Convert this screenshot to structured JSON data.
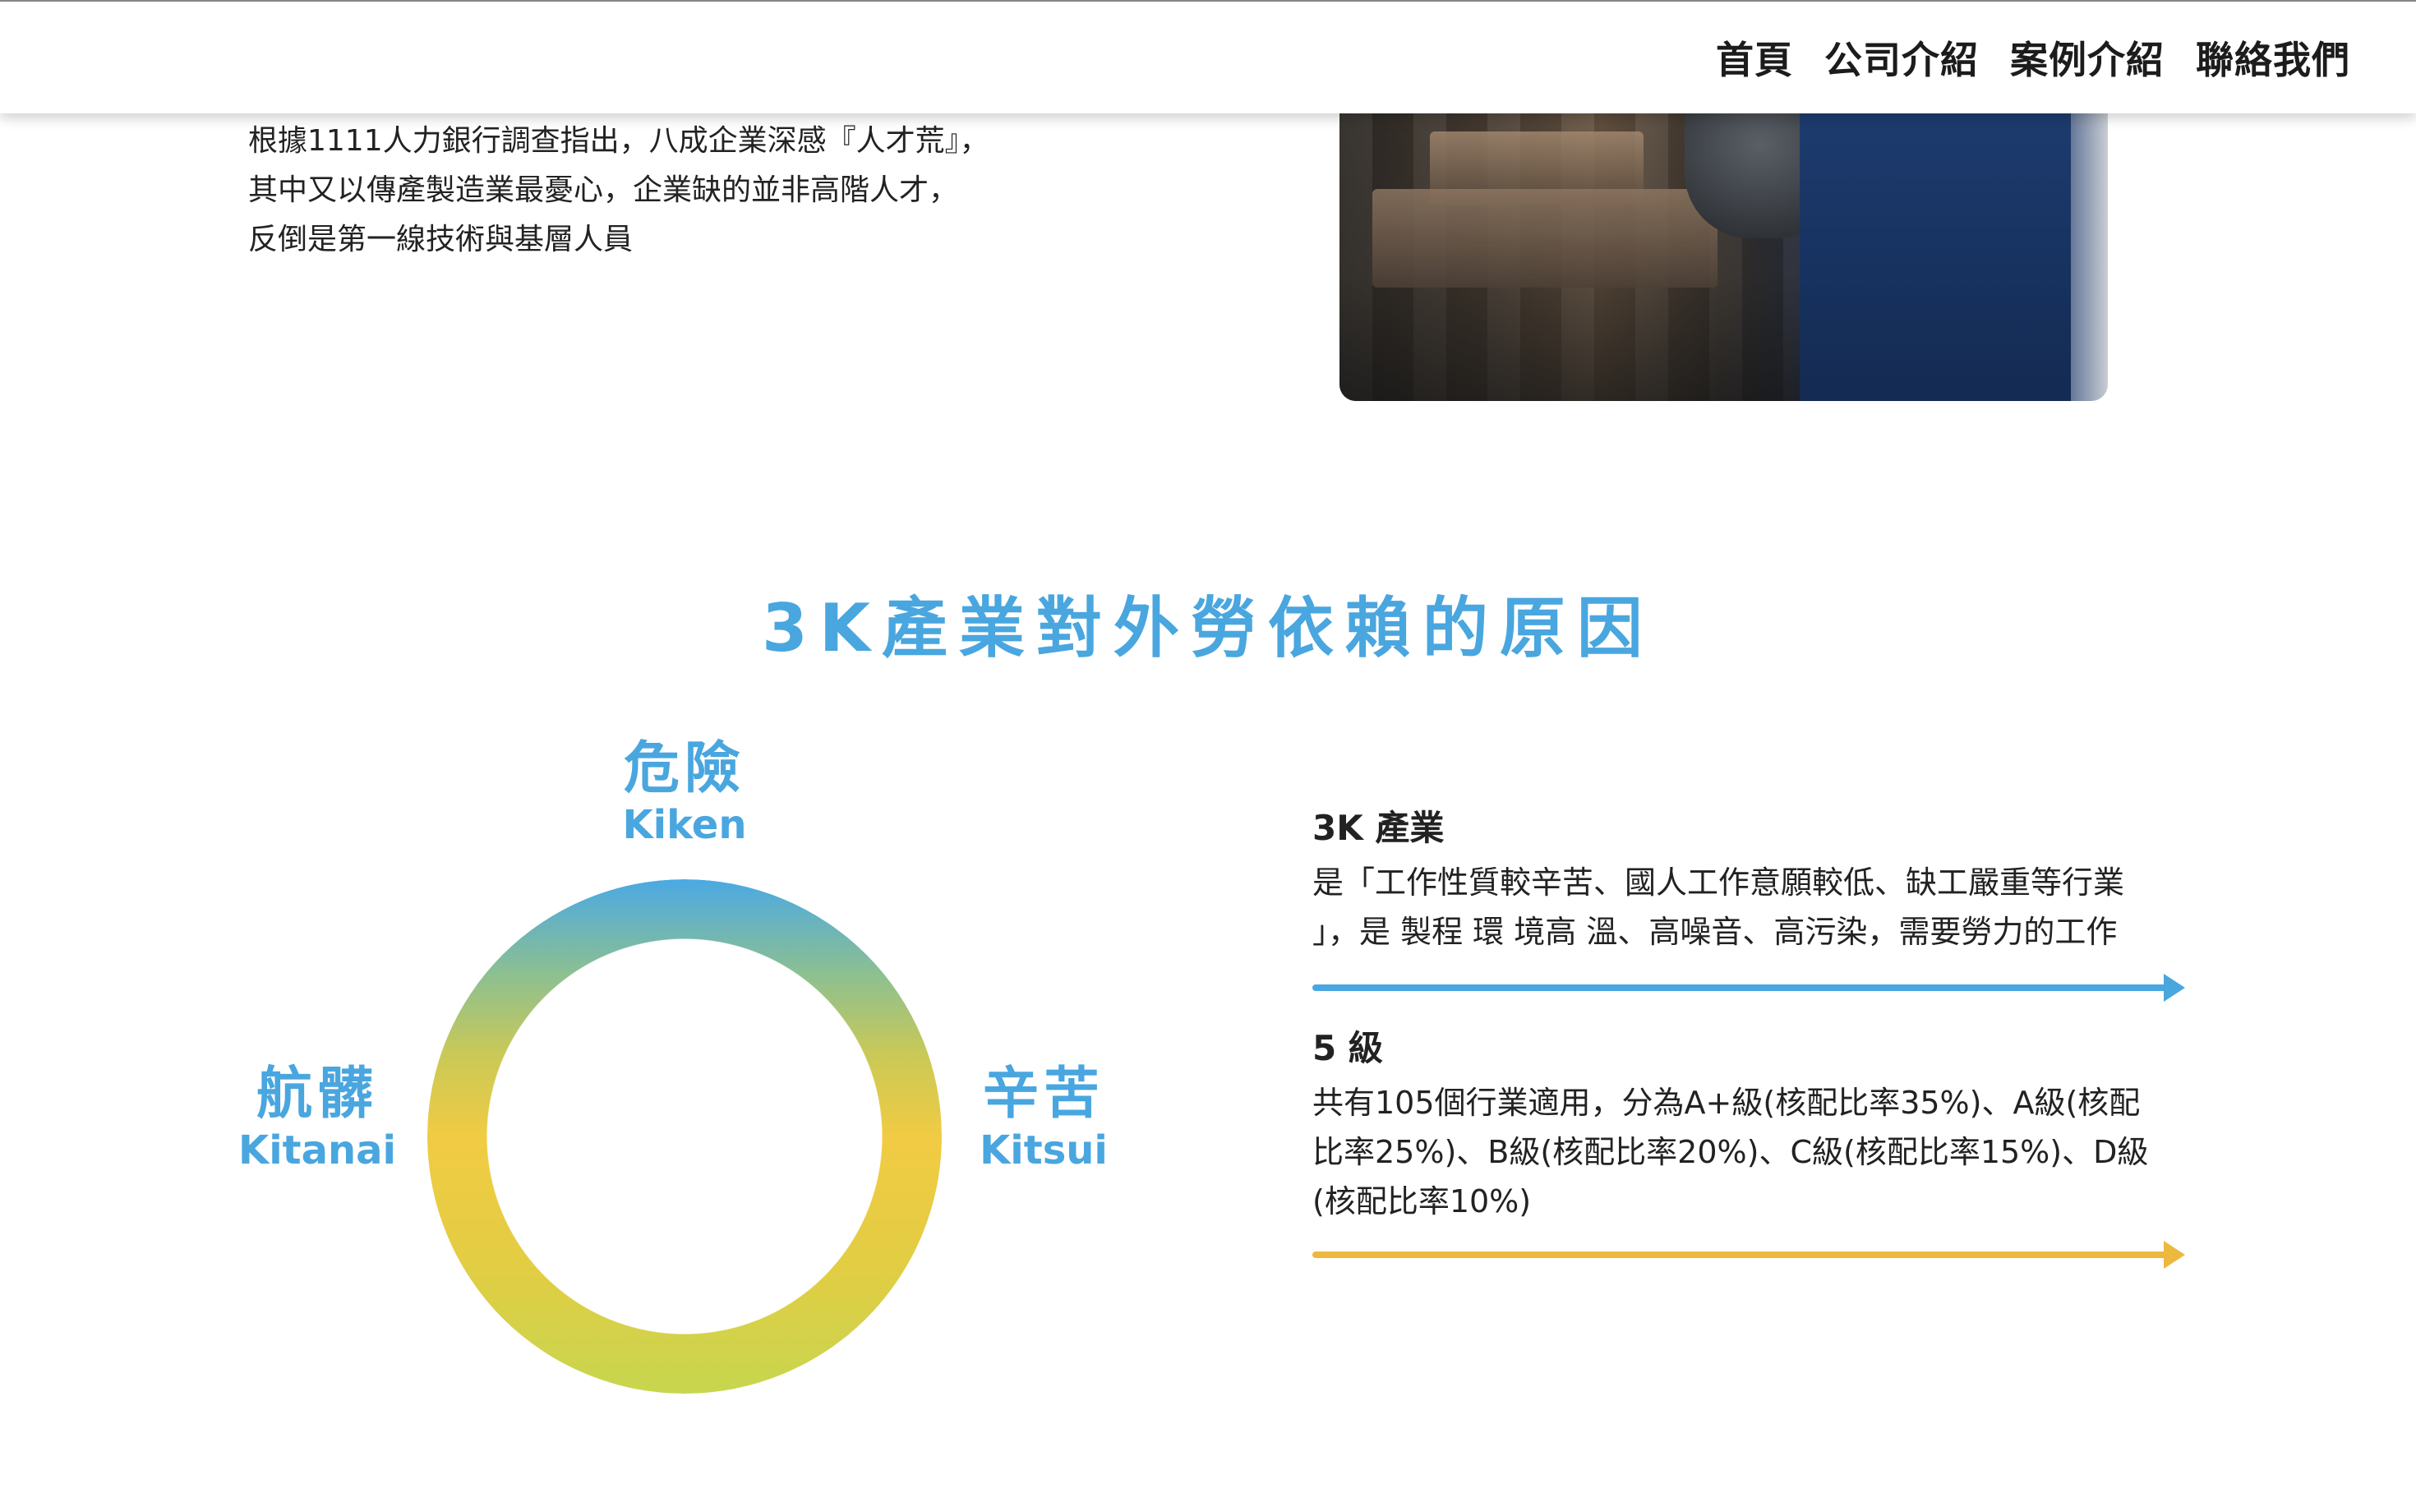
{
  "nav": {
    "items": [
      "首頁",
      "公司介紹",
      "案例介紹",
      "聯絡我們"
    ]
  },
  "intro": {
    "lines": [
      "根據1111人力銀行調查指出，八成企業深感『人才荒』，",
      "其中又以傳產製造業最憂心，企業缺的並非高階人才，",
      "反倒是第一線技術與基層人員"
    ]
  },
  "section": {
    "title": "3K產業對外勞依賴的原因"
  },
  "diagram": {
    "top": {
      "zh": "危險",
      "en": "Kiken"
    },
    "left": {
      "zh": "航髒",
      "en": "Kitanai"
    },
    "right": {
      "zh": "辛苦",
      "en": "Kitsui"
    }
  },
  "info": [
    {
      "title": "3K 產業",
      "lines": [
        "是「工作性質較辛苦、國人工作意願較低、缺工嚴重等行業",
        "」，是 製程 環 境高 溫、高噪音、高污染，需要勞力的工作"
      ]
    },
    {
      "title": "5 級",
      "lines": [
        "共有105個行業適用，分為A+級(核配比率35%)、A級(核配",
        "比率25%)、B級(核配比率20%)、C級(核配比率15%)、D級",
        "(核配比率10%)"
      ]
    }
  ],
  "colors": {
    "accent_blue": "#49a6df",
    "accent_yellow": "#ecb83f"
  }
}
